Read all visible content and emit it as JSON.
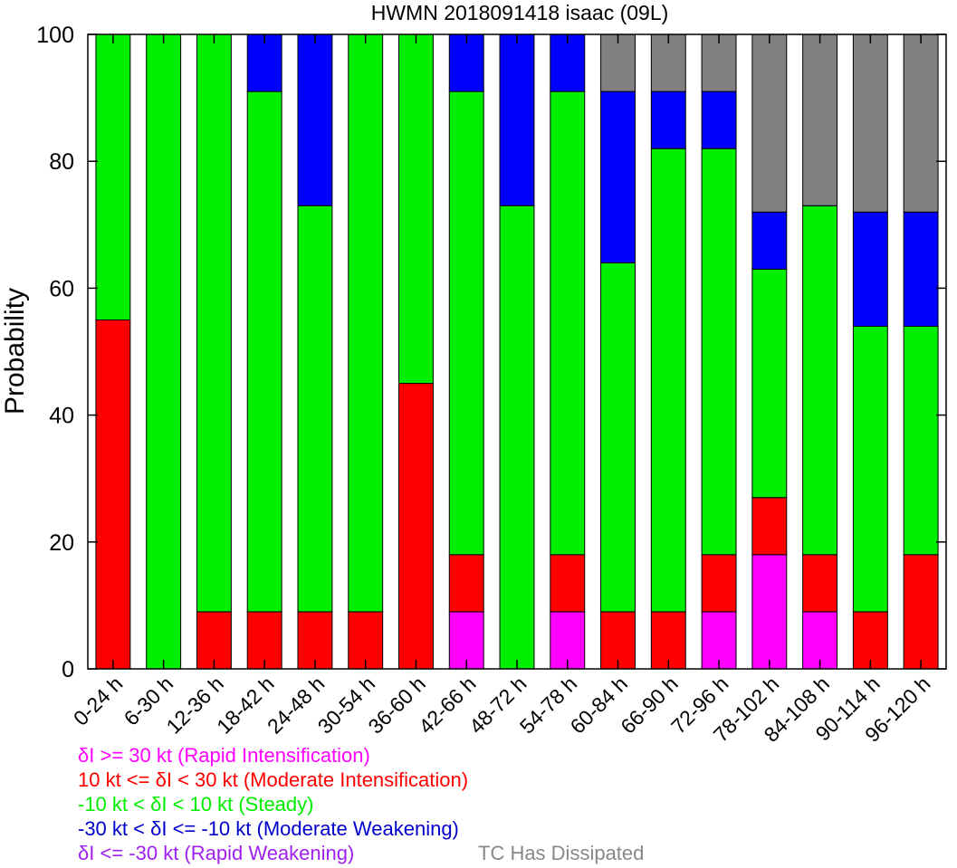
{
  "chart_data": {
    "type": "bar",
    "stacked": true,
    "title": "HWMN 2018091418 isaac (09L)",
    "xlabel": "",
    "ylabel": "Probability",
    "ylim": [
      0,
      100
    ],
    "yticks": [
      0,
      20,
      40,
      60,
      80,
      100
    ],
    "categories": [
      "0-24 h",
      "6-30 h",
      "12-36 h",
      "18-42 h",
      "24-48 h",
      "30-54 h",
      "36-60 h",
      "42-66 h",
      "48-72 h",
      "54-78 h",
      "60-84 h",
      "66-90 h",
      "72-96 h",
      "78-102 h",
      "84-108 h",
      "90-114 h",
      "96-120 h"
    ],
    "series": [
      {
        "key": "ri",
        "color": "#ff00ff",
        "values": [
          0,
          0,
          0,
          0,
          0,
          0,
          0,
          9,
          0,
          9,
          0,
          0,
          9,
          18,
          9,
          0,
          0
        ]
      },
      {
        "key": "mi",
        "color": "#ff0000",
        "values": [
          55,
          0,
          9,
          9,
          9,
          9,
          45,
          9,
          0,
          9,
          9,
          9,
          9,
          9,
          9,
          9,
          18
        ]
      },
      {
        "key": "steady",
        "color": "#00ee00",
        "values": [
          45,
          100,
          91,
          82,
          64,
          91,
          55,
          73,
          73,
          73,
          55,
          73,
          64,
          36,
          55,
          45,
          36
        ]
      },
      {
        "key": "mw",
        "color": "#0000ff",
        "values": [
          0,
          0,
          0,
          9,
          27,
          0,
          0,
          9,
          27,
          9,
          27,
          9,
          9,
          9,
          0,
          18,
          18
        ]
      },
      {
        "key": "rw",
        "color": "#a020f0",
        "values": [
          0,
          0,
          0,
          0,
          0,
          0,
          0,
          0,
          0,
          0,
          0,
          0,
          0,
          0,
          0,
          0,
          0
        ]
      },
      {
        "key": "dissipated",
        "color": "#808080",
        "values": [
          0,
          0,
          0,
          0,
          0,
          0,
          0,
          0,
          0,
          0,
          9,
          9,
          9,
          28,
          27,
          28,
          28
        ]
      }
    ],
    "grid": false
  },
  "legend": [
    {
      "key": "ri",
      "text": "δI >= 30 kt (Rapid Intensification)",
      "color": "#ff00ff"
    },
    {
      "key": "mi",
      "text": "10 kt <= δI < 30 kt (Moderate Intensification)",
      "color": "#ff0000"
    },
    {
      "key": "steady",
      "text": "-10 kt < δI < 10 kt (Steady)",
      "color": "#00ee00"
    },
    {
      "key": "mw",
      "text": "-30 kt < δI <= -10 kt (Moderate Weakening)",
      "color": "#0000cc"
    },
    {
      "key": "rw",
      "text": "δI <= -30 kt (Rapid Weakening)",
      "color": "#a020f0"
    }
  ],
  "legend_dissipated": {
    "text": "TC Has Dissipated",
    "color": "#888888"
  }
}
